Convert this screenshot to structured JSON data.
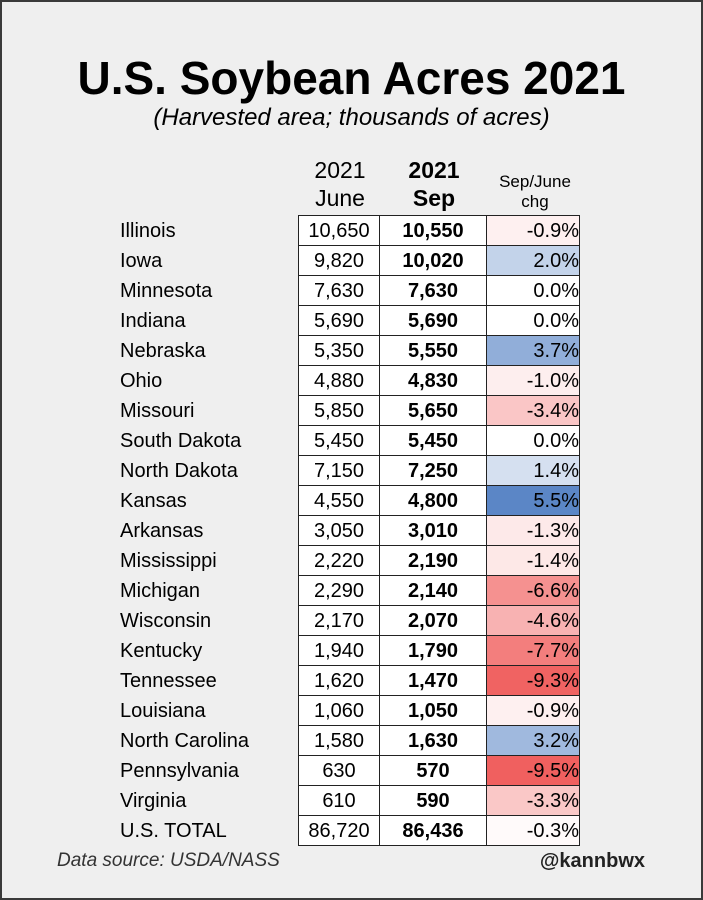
{
  "title": "U.S. Soybean Acres 2021",
  "subtitle": "(Harvested area; thousands of acres)",
  "headers": {
    "june_line1": "2021",
    "june_line2": "June",
    "sep_line1": "2021",
    "sep_line2": "Sep",
    "chg_line1": "Sep/June",
    "chg_line2": "chg"
  },
  "footer": {
    "source": "Data source: USDA/NASS",
    "handle": "@kannbwx"
  },
  "colors": {
    "positive": "#5b86c6",
    "negative": "#f0605f",
    "neutral": "#ffffff"
  },
  "chart_data": {
    "type": "table",
    "title": "U.S. Soybean Acres 2021",
    "subtitle": "(Harvested area; thousands of acres)",
    "columns": [
      "2021 June",
      "2021 Sep",
      "Sep/June chg"
    ],
    "rows": [
      {
        "state": "Illinois",
        "june": "10,650",
        "sep": "10,550",
        "chg": "-0.9%",
        "chg_value": -0.9
      },
      {
        "state": "Iowa",
        "june": "9,820",
        "sep": "10,020",
        "chg": "2.0%",
        "chg_value": 2.0
      },
      {
        "state": "Minnesota",
        "june": "7,630",
        "sep": "7,630",
        "chg": "0.0%",
        "chg_value": 0.0
      },
      {
        "state": "Indiana",
        "june": "5,690",
        "sep": "5,690",
        "chg": "0.0%",
        "chg_value": 0.0
      },
      {
        "state": "Nebraska",
        "june": "5,350",
        "sep": "5,550",
        "chg": "3.7%",
        "chg_value": 3.7
      },
      {
        "state": "Ohio",
        "june": "4,880",
        "sep": "4,830",
        "chg": "-1.0%",
        "chg_value": -1.0
      },
      {
        "state": "Missouri",
        "june": "5,850",
        "sep": "5,650",
        "chg": "-3.4%",
        "chg_value": -3.4
      },
      {
        "state": "South Dakota",
        "june": "5,450",
        "sep": "5,450",
        "chg": "0.0%",
        "chg_value": 0.0
      },
      {
        "state": "North Dakota",
        "june": "7,150",
        "sep": "7,250",
        "chg": "1.4%",
        "chg_value": 1.4
      },
      {
        "state": "Kansas",
        "june": "4,550",
        "sep": "4,800",
        "chg": "5.5%",
        "chg_value": 5.5
      },
      {
        "state": "Arkansas",
        "june": "3,050",
        "sep": "3,010",
        "chg": "-1.3%",
        "chg_value": -1.3
      },
      {
        "state": "Mississippi",
        "june": "2,220",
        "sep": "2,190",
        "chg": "-1.4%",
        "chg_value": -1.4
      },
      {
        "state": "Michigan",
        "june": "2,290",
        "sep": "2,140",
        "chg": "-6.6%",
        "chg_value": -6.6
      },
      {
        "state": "Wisconsin",
        "june": "2,170",
        "sep": "2,070",
        "chg": "-4.6%",
        "chg_value": -4.6
      },
      {
        "state": "Kentucky",
        "june": "1,940",
        "sep": "1,790",
        "chg": "-7.7%",
        "chg_value": -7.7
      },
      {
        "state": "Tennessee",
        "june": "1,620",
        "sep": "1,470",
        "chg": "-9.3%",
        "chg_value": -9.3
      },
      {
        "state": "Louisiana",
        "june": "1,060",
        "sep": "1,050",
        "chg": "-0.9%",
        "chg_value": -0.9
      },
      {
        "state": "North Carolina",
        "june": "1,580",
        "sep": "1,630",
        "chg": "3.2%",
        "chg_value": 3.2
      },
      {
        "state": "Pennsylvania",
        "june": "630",
        "sep": "570",
        "chg": "-9.5%",
        "chg_value": -9.5
      },
      {
        "state": "Virginia",
        "june": "610",
        "sep": "590",
        "chg": "-3.3%",
        "chg_value": -3.3
      },
      {
        "state": "U.S. TOTAL",
        "june": "86,720",
        "sep": "86,436",
        "chg": "-0.3%",
        "chg_value": -0.3
      }
    ]
  }
}
